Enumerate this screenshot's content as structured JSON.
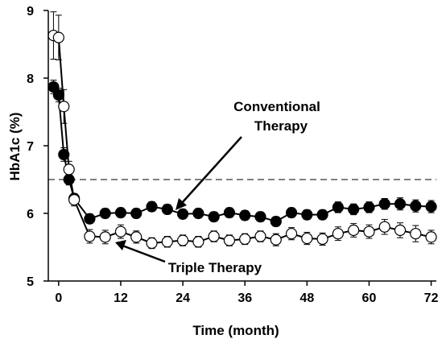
{
  "chart_data": {
    "type": "line",
    "xlabel": "Time (month)",
    "ylabel": "HbA1c (%)",
    "xlim": [
      -2,
      73
    ],
    "ylim": [
      5,
      9
    ],
    "x_ticks": [
      0,
      12,
      24,
      36,
      48,
      60,
      72
    ],
    "y_ticks": [
      5,
      6,
      7,
      8,
      9
    ],
    "reference_line": {
      "y": 6.5,
      "style": "dashed"
    },
    "series": [
      {
        "name": "Conventional Therapy",
        "marker": "filled-circle",
        "x": [
          -1,
          0,
          1,
          2,
          3,
          6,
          9,
          12,
          15,
          18,
          21,
          24,
          27,
          30,
          33,
          36,
          39,
          42,
          45,
          48,
          51,
          54,
          57,
          60,
          63,
          66,
          69,
          72
        ],
        "y": [
          7.87,
          7.75,
          6.87,
          6.5,
          6.22,
          5.92,
          6.0,
          6.01,
          6.0,
          6.1,
          6.06,
          5.99,
          6.0,
          5.95,
          6.01,
          5.97,
          5.95,
          5.88,
          6.01,
          5.98,
          5.98,
          6.09,
          6.06,
          6.09,
          6.14,
          6.14,
          6.11,
          6.1
        ],
        "err": [
          0.1,
          0.1,
          0.1,
          0.08,
          0.07,
          0.07,
          0.07,
          0.07,
          0.07,
          0.07,
          0.07,
          0.07,
          0.07,
          0.07,
          0.07,
          0.07,
          0.07,
          0.07,
          0.07,
          0.07,
          0.07,
          0.08,
          0.08,
          0.08,
          0.08,
          0.09,
          0.09,
          0.09
        ]
      },
      {
        "name": "Triple Therapy",
        "marker": "open-circle",
        "x": [
          -1,
          0,
          1,
          2,
          3,
          6,
          9,
          12,
          15,
          18,
          21,
          24,
          27,
          30,
          33,
          36,
          39,
          42,
          45,
          48,
          51,
          54,
          57,
          60,
          63,
          66,
          69,
          72
        ],
        "y": [
          8.63,
          8.6,
          7.58,
          6.65,
          6.2,
          5.66,
          5.65,
          5.73,
          5.65,
          5.56,
          5.58,
          5.6,
          5.58,
          5.66,
          5.6,
          5.62,
          5.66,
          5.61,
          5.7,
          5.63,
          5.62,
          5.7,
          5.75,
          5.73,
          5.8,
          5.75,
          5.7,
          5.65
        ],
        "err": [
          0.35,
          0.33,
          0.25,
          0.12,
          0.09,
          0.1,
          0.1,
          0.1,
          0.09,
          0.08,
          0.08,
          0.08,
          0.08,
          0.08,
          0.08,
          0.08,
          0.08,
          0.09,
          0.09,
          0.09,
          0.09,
          0.1,
          0.1,
          0.1,
          0.11,
          0.11,
          0.12,
          0.1
        ]
      }
    ]
  },
  "annotations": {
    "conventional_line1": "Conventional",
    "conventional_line2": "Therapy",
    "triple": "Triple Therapy"
  }
}
